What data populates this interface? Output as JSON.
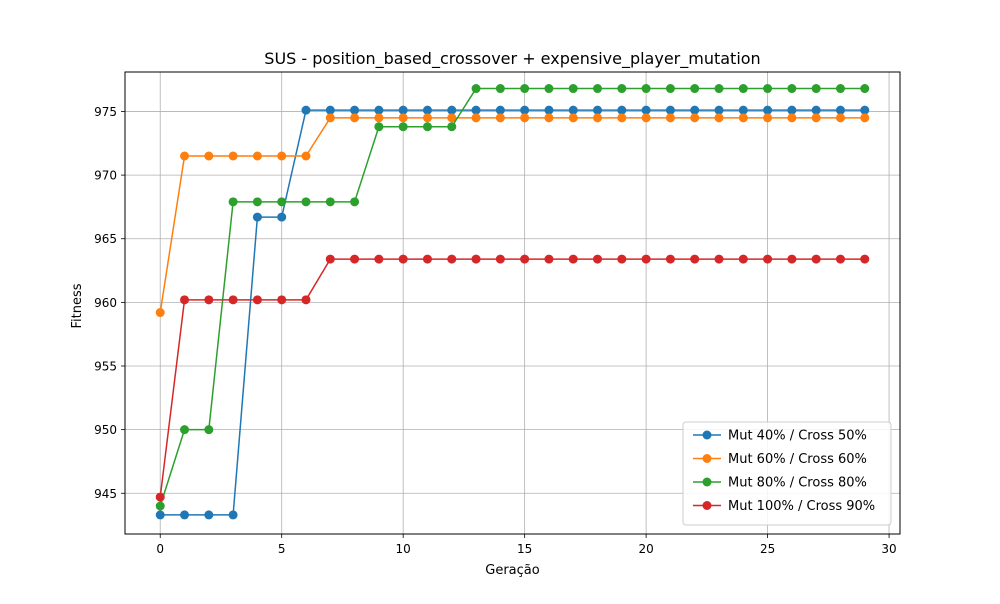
{
  "chart_data": {
    "type": "line",
    "title": "SUS - position_based_crossover + expensive_player_mutation",
    "xlabel": "Geração",
    "ylabel": "Fitness",
    "xlim": [
      -1.45,
      30.45
    ],
    "ylim": [
      941.8,
      978.1
    ],
    "xticks": [
      0,
      5,
      10,
      15,
      20,
      25,
      30
    ],
    "yticks": [
      945,
      950,
      955,
      960,
      965,
      970,
      975
    ],
    "grid": true,
    "legend_position": "lower-right",
    "x": [
      0,
      1,
      2,
      3,
      4,
      5,
      6,
      7,
      8,
      9,
      10,
      11,
      12,
      13,
      14,
      15,
      16,
      17,
      18,
      19,
      20,
      21,
      22,
      23,
      24,
      25,
      26,
      27,
      28,
      29
    ],
    "series": [
      {
        "name": "Mut 40% / Cross 50%",
        "color": "#1f77b4",
        "values": [
          943.3,
          943.3,
          943.3,
          943.3,
          966.7,
          966.7,
          975.1,
          975.1,
          975.1,
          975.1,
          975.1,
          975.1,
          975.1,
          975.1,
          975.1,
          975.1,
          975.1,
          975.1,
          975.1,
          975.1,
          975.1,
          975.1,
          975.1,
          975.1,
          975.1,
          975.1,
          975.1,
          975.1,
          975.1,
          975.1
        ]
      },
      {
        "name": "Mut 60% / Cross 60%",
        "color": "#ff7f0e",
        "values": [
          959.2,
          971.5,
          971.5,
          971.5,
          971.5,
          971.5,
          971.5,
          974.5,
          974.5,
          974.5,
          974.5,
          974.5,
          974.5,
          974.5,
          974.5,
          974.5,
          974.5,
          974.5,
          974.5,
          974.5,
          974.5,
          974.5,
          974.5,
          974.5,
          974.5,
          974.5,
          974.5,
          974.5,
          974.5,
          974.5
        ]
      },
      {
        "name": "Mut 80% / Cross 80%",
        "color": "#2ca02c",
        "values": [
          944.0,
          950.0,
          950.0,
          967.9,
          967.9,
          967.9,
          967.9,
          967.9,
          967.9,
          973.8,
          973.8,
          973.8,
          973.8,
          976.8,
          976.8,
          976.8,
          976.8,
          976.8,
          976.8,
          976.8,
          976.8,
          976.8,
          976.8,
          976.8,
          976.8,
          976.8,
          976.8,
          976.8,
          976.8,
          976.8
        ]
      },
      {
        "name": "Mut 100% / Cross 90%",
        "color": "#d62728",
        "values": [
          944.7,
          960.2,
          960.2,
          960.2,
          960.2,
          960.2,
          960.2,
          963.4,
          963.4,
          963.4,
          963.4,
          963.4,
          963.4,
          963.4,
          963.4,
          963.4,
          963.4,
          963.4,
          963.4,
          963.4,
          963.4,
          963.4,
          963.4,
          963.4,
          963.4,
          963.4,
          963.4,
          963.4,
          963.4,
          963.4
        ]
      }
    ]
  }
}
